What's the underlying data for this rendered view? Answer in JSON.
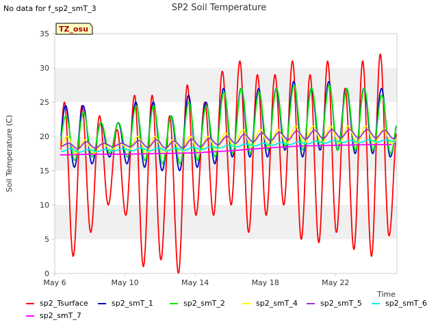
{
  "no_data_message": "No data for f_sp2_smT_3",
  "badge": "TZ_osu",
  "chart_data": {
    "type": "line",
    "title": "SP2 Soil Temperature",
    "xlabel": "Time",
    "ylabel": "Soil Temperature (C)",
    "xlim": [
      0,
      19.5
    ],
    "ylim": [
      0,
      35
    ],
    "x_ticks": [
      {
        "value": 0,
        "label": "May 6"
      },
      {
        "value": 4,
        "label": "May 10"
      },
      {
        "value": 8,
        "label": "May 14"
      },
      {
        "value": 12,
        "label": "May 18"
      },
      {
        "value": 16,
        "label": "May 22"
      }
    ],
    "y_ticks": [
      0,
      5,
      10,
      15,
      20,
      25,
      30,
      35
    ],
    "grid": true,
    "legend_position": "bottom",
    "series": [
      {
        "name": "sp2_Tsurface",
        "color": "#ff0000",
        "peaks": [
          25,
          24.5,
          23,
          21,
          26,
          26,
          23,
          27.5,
          25,
          29.5,
          31,
          29,
          29,
          31,
          29,
          31,
          27,
          31,
          32,
          22,
          31.5,
          33.5
        ],
        "mins": [
          5,
          2.5,
          6,
          10,
          8.5,
          1,
          2,
          0,
          8.5,
          8.5,
          10,
          6,
          8.5,
          10,
          5,
          4.5,
          6,
          3.5,
          2.5,
          5.5,
          6,
          9
        ]
      },
      {
        "name": "sp2_smT_1",
        "color": "#0000cc",
        "peaks": [
          24.5,
          24.5,
          22,
          22,
          25,
          25,
          23,
          26,
          25,
          27,
          27,
          27,
          27,
          28,
          27,
          28,
          27,
          27,
          27,
          23,
          27,
          28
        ],
        "mins": [
          16.5,
          15.5,
          16,
          17,
          16,
          15.5,
          15,
          15,
          15.5,
          16,
          17,
          17,
          17,
          18,
          17,
          18,
          18,
          17.5,
          17.5,
          17,
          18,
          20.5
        ]
      },
      {
        "name": "sp2_smT_2",
        "color": "#00ee00",
        "peaks": [
          23,
          23.5,
          22,
          22,
          24.5,
          24.5,
          23,
          25,
          24.5,
          26.5,
          27,
          26.5,
          27,
          27.5,
          27,
          27.5,
          27,
          27,
          26,
          23.5,
          26.5,
          27.5
        ],
        "mins": [
          17.5,
          16.5,
          17,
          17.5,
          17,
          16.5,
          16,
          16,
          16.5,
          17,
          17.5,
          17.5,
          18,
          18.5,
          18,
          18.5,
          18,
          18,
          18,
          17.5,
          18.5,
          21
        ]
      },
      {
        "name": "sp2_smT_4",
        "color": "#ffff00",
        "peaks": [
          20,
          19.5,
          19,
          19,
          20,
          20,
          19.5,
          20,
          20,
          20.5,
          21,
          21,
          21,
          21.5,
          21.5,
          21.5,
          21.5,
          21.5,
          21,
          20.5,
          21.5,
          22
        ],
        "mins": [
          18,
          17.5,
          17.5,
          18,
          18,
          17.5,
          17.5,
          17.5,
          17.5,
          18,
          18.5,
          18.5,
          18.5,
          19,
          19,
          19,
          19,
          19,
          19,
          19,
          19,
          20
        ]
      },
      {
        "name": "sp2_smT_5",
        "color": "#9932cc",
        "peaks": [
          19,
          19.2,
          19,
          19,
          19.4,
          19.5,
          19.3,
          19.6,
          19.7,
          20,
          20.3,
          20.5,
          20.6,
          20.8,
          20.9,
          21,
          21,
          21,
          20.9,
          20.8,
          20.9,
          21
        ],
        "mins": [
          18.5,
          18.2,
          18.3,
          18.5,
          18.5,
          18.4,
          18.3,
          18.3,
          18.5,
          18.8,
          19,
          19.2,
          19.4,
          19.5,
          19.6,
          19.7,
          19.8,
          19.8,
          19.8,
          19.7,
          19.8,
          20
        ]
      },
      {
        "name": "sp2_smT_6",
        "color": "#00eeee",
        "peaks": [
          18.2,
          18.1,
          18.1,
          18.2,
          18.3,
          18.3,
          18.3,
          18.4,
          18.5,
          18.7,
          18.9,
          19,
          19.1,
          19.2,
          19.3,
          19.4,
          19.4,
          19.5,
          19.5,
          19.5,
          19.5,
          19.6
        ],
        "mins": [
          17.8,
          17.7,
          17.8,
          17.9,
          17.9,
          17.9,
          17.9,
          18,
          18.1,
          18.3,
          18.5,
          18.6,
          18.7,
          18.8,
          18.9,
          19,
          19.1,
          19.1,
          19.2,
          19.2,
          19.2,
          19.3
        ]
      },
      {
        "name": "sp2_smT_7",
        "color": "#ff00ff",
        "x": [
          0.3,
          2,
          4,
          6,
          8,
          10,
          12,
          14,
          16,
          18,
          19.2
        ],
        "y": [
          17.3,
          17.4,
          17.4,
          17.5,
          17.6,
          17.9,
          18.3,
          18.6,
          18.7,
          18.8,
          18.8
        ]
      }
    ]
  }
}
